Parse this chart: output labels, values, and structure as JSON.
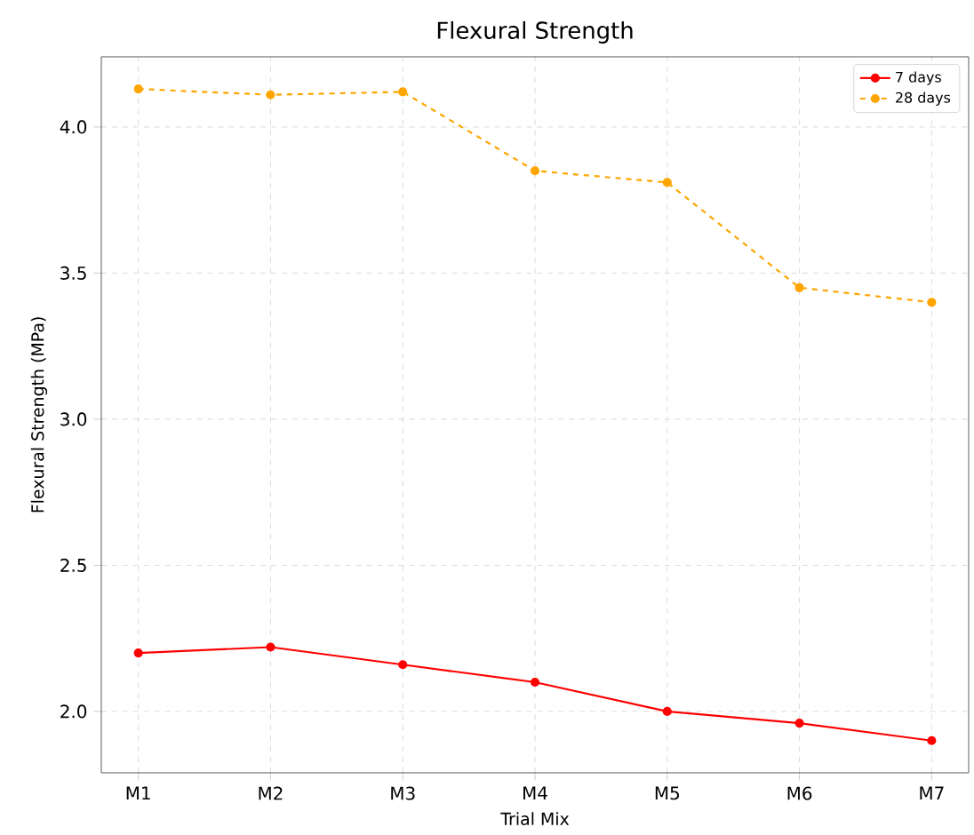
{
  "chart_data": {
    "type": "line",
    "title": "Flexural Strength",
    "xlabel": "Trial Mix",
    "ylabel": "Flexural Strength (MPa)",
    "categories": [
      "M1",
      "M2",
      "M3",
      "M4",
      "M5",
      "M6",
      "M7"
    ],
    "series": [
      {
        "name": "7 days",
        "color": "#ff0000",
        "line_style": "solid",
        "values": [
          2.2,
          2.22,
          2.16,
          2.1,
          2.0,
          1.96,
          1.9
        ]
      },
      {
        "name": "28 days",
        "color": "#ffa500",
        "line_style": "dashed",
        "values": [
          4.13,
          4.11,
          4.12,
          3.85,
          3.81,
          3.45,
          3.4
        ]
      }
    ],
    "ylim": [
      1.79,
      4.24
    ],
    "yticks": [
      {
        "value": 2.0,
        "label": "2.0"
      },
      2.5,
      {
        "value": 3.0,
        "label": "3.0"
      },
      3.5,
      {
        "value": 4.0,
        "label": "4.0"
      }
    ],
    "grid": true,
    "legend": "top right",
    "marker": "circle"
  }
}
